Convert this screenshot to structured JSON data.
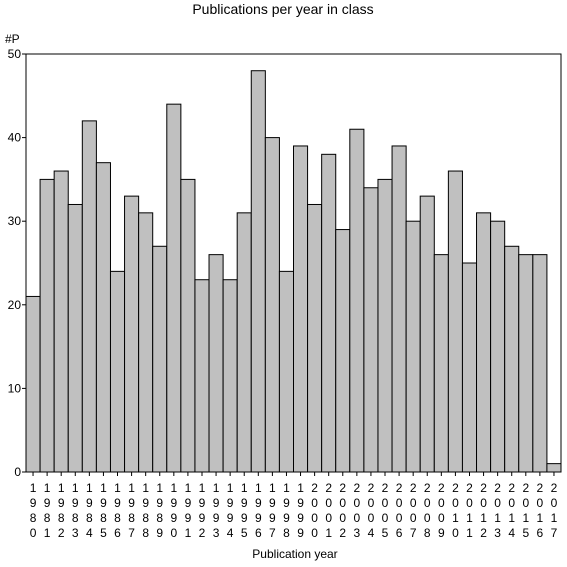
{
  "chart_data": {
    "type": "bar",
    "title": "Publications per year in class",
    "xlabel": "Publication year",
    "ylabel": "#P",
    "ylim": [
      0,
      50
    ],
    "yticks": [
      0,
      10,
      20,
      30,
      40,
      50
    ],
    "grid": false,
    "bar_color": "#c0c0c0",
    "categories": [
      "1980",
      "1981",
      "1982",
      "1983",
      "1984",
      "1985",
      "1986",
      "1987",
      "1988",
      "1989",
      "1990",
      "1991",
      "1992",
      "1993",
      "1994",
      "1995",
      "1996",
      "1997",
      "1998",
      "1999",
      "2000",
      "2001",
      "2002",
      "2003",
      "2004",
      "2005",
      "2006",
      "2007",
      "2008",
      "2009",
      "2010",
      "2011",
      "2012",
      "2013",
      "2014",
      "2015",
      "2016",
      "2017"
    ],
    "values": [
      21,
      35,
      36,
      32,
      42,
      37,
      24,
      33,
      31,
      27,
      44,
      35,
      23,
      26,
      23,
      31,
      48,
      40,
      24,
      39,
      32,
      38,
      29,
      41,
      34,
      35,
      39,
      30,
      33,
      26,
      36,
      25,
      31,
      30,
      27,
      26,
      26,
      1
    ]
  }
}
